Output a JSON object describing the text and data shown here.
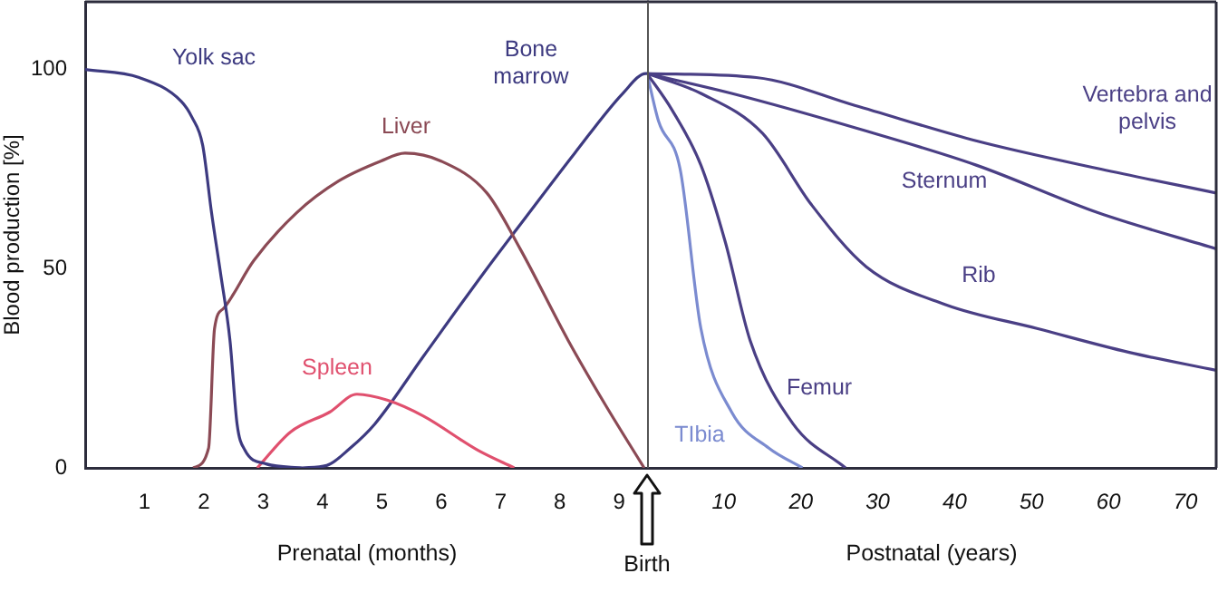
{
  "chart_data": [
    {
      "type": "line",
      "xlabel": "Prenatal (months)",
      "ylabel": "Blood production [%]",
      "xlim": [
        0,
        9.5
      ],
      "xticks": [
        1,
        2,
        3,
        4,
        5,
        6,
        7,
        8,
        9
      ],
      "ylim": [
        0,
        117
      ],
      "yticks": [
        0,
        50,
        100
      ],
      "series": [
        {
          "name": "Yolk sac",
          "color": "#3d3a80",
          "x": [
            0,
            0.91,
            1.62,
            1.8,
            1.98,
            2.13,
            2.28,
            2.44,
            2.56,
            2.69,
            3.05,
            3.66
          ],
          "values": [
            100,
            98,
            92,
            88,
            81,
            64,
            49,
            32,
            11,
            4.5,
            1,
            0
          ]
        },
        {
          "name": "Liver",
          "color": "#8b4a55",
          "x": [
            1.82,
            2.08,
            2.18,
            2.33,
            2.84,
            3.56,
            4.27,
            4.98,
            5.39,
            6.0,
            6.77,
            7.33,
            8.14,
            8.76,
            9.42
          ],
          "values": [
            0,
            5,
            35,
            40,
            52,
            64,
            72,
            77,
            79,
            77,
            69,
            55,
            32,
            16,
            0
          ]
        },
        {
          "name": "Spleen",
          "color": "#e0506e",
          "x": [
            2.9,
            3.46,
            4.12,
            4.58,
            5.09,
            5.7,
            6.62,
            7.23
          ],
          "values": [
            0,
            9,
            14,
            18.5,
            17,
            13,
            4.4,
            0
          ]
        },
        {
          "name": "Bone marrow",
          "color": "#3d3a80",
          "x": [
            3.66,
            4.07,
            4.47,
            4.88,
            5.7,
            6.72,
            7.43,
            8.25,
            9.06,
            9.45,
            9.5
          ],
          "values": [
            0,
            0.6,
            5,
            11,
            28,
            49,
            63,
            79,
            94,
            99,
            99
          ]
        }
      ]
    },
    {
      "type": "line",
      "xlabel": "Postnatal (years)",
      "xlim": [
        0,
        74
      ],
      "xticks": [
        10,
        20,
        30,
        40,
        50,
        60,
        70
      ],
      "ylim": [
        0,
        117
      ],
      "tick_labels": "x",
      "ref_lines": [
        {
          "axis": "x",
          "value": 0,
          "label": "Birth"
        }
      ],
      "series": [
        {
          "name": "Vertebra and pelvis",
          "color": "#4a3f85",
          "x": [
            0,
            14.2,
            27,
            43,
            59,
            74
          ],
          "values": [
            99,
            98,
            91,
            82,
            75,
            69
          ]
        },
        {
          "name": "Sternum",
          "color": "#4a3f85",
          "x": [
            0,
            11,
            27.7,
            42.8,
            58.7,
            74
          ],
          "values": [
            99,
            94,
            85,
            76,
            64,
            55
          ]
        },
        {
          "name": "Rib",
          "color": "#4a3f85",
          "x": [
            0,
            7,
            15,
            21.4,
            28.5,
            38.8,
            50.7,
            62.7,
            74
          ],
          "values": [
            99,
            94,
            84,
            66,
            50.5,
            41,
            35,
            29,
            24.5
          ]
        },
        {
          "name": "Femur",
          "color": "#4a3f85",
          "x": [
            0,
            3.2,
            7,
            10.2,
            13.4,
            19,
            25.8
          ],
          "values": [
            99,
            90,
            76,
            56.5,
            32,
            11,
            0
          ]
        },
        {
          "name": "TIbia",
          "color": "#7b8bd0",
          "x": [
            0,
            1.5,
            4.3,
            7,
            11,
            15.8,
            20.2
          ],
          "values": [
            99,
            87,
            75,
            35,
            14,
            5,
            0
          ]
        }
      ]
    }
  ]
}
